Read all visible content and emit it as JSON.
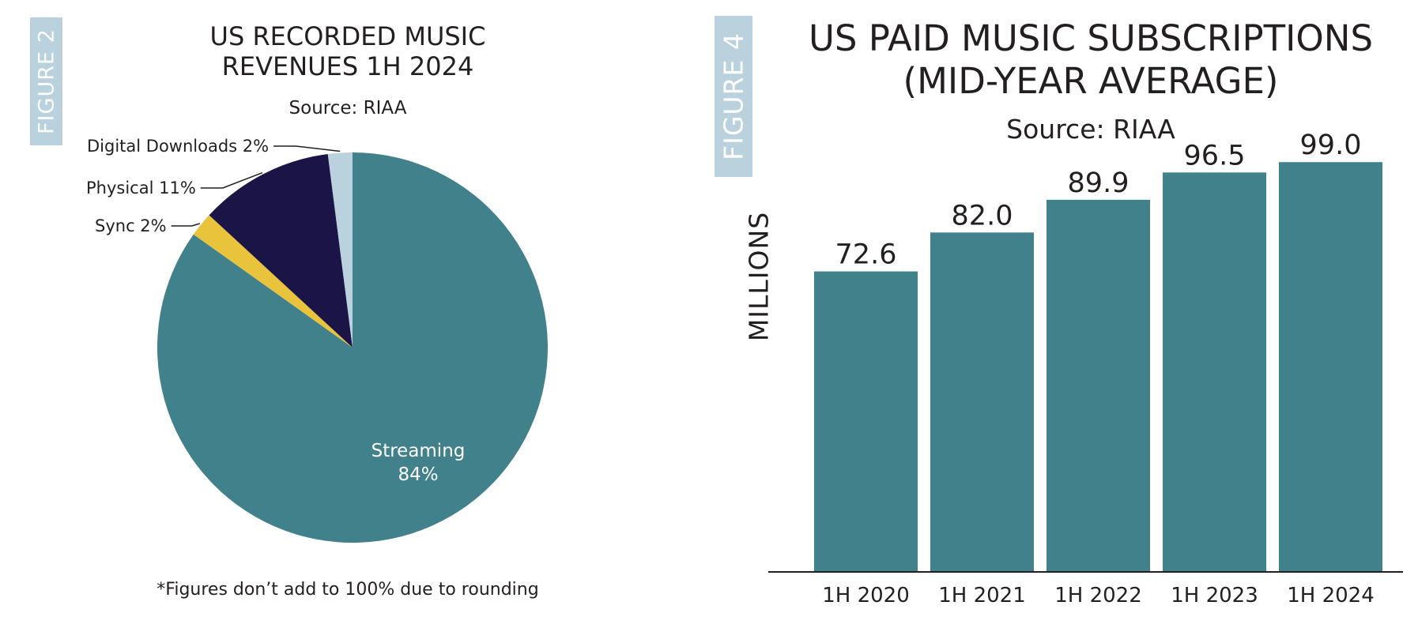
{
  "figures": {
    "left_tag": "FIGURE 2",
    "right_tag": "FIGURE 4"
  },
  "footnote": "*Figures don’t add to 100% due to rounding",
  "colors": {
    "streaming": "#40818b",
    "physical": "#1b1447",
    "sync": "#e8c33b",
    "digital_downloads": "#b9d2de",
    "bar": "#40818b",
    "tag": "#b9d2de"
  },
  "chart_data": [
    {
      "type": "pie",
      "title": "US RECORDED MUSIC REVENUES 1H 2024",
      "subtitle": "Source: RIAA",
      "slices": [
        {
          "name": "Streaming",
          "value": 84,
          "label": "84%"
        },
        {
          "name": "Sync",
          "value": 2,
          "label": "Sync 2%"
        },
        {
          "name": "Physical",
          "value": 11,
          "label": "Physical 11%"
        },
        {
          "name": "Digital Downloads",
          "value": 2,
          "label": "Digital Downloads 2%"
        }
      ]
    },
    {
      "type": "bar",
      "title": "US PAID MUSIC SUBSCRIPTIONS (MID-YEAR AVERAGE)",
      "subtitle": "Source: RIAA",
      "ylabel": "MILLIONS",
      "xlabel": "",
      "categories": [
        "1H 2020",
        "1H 2021",
        "1H 2022",
        "1H 2023",
        "1H 2024"
      ],
      "values": [
        72.6,
        82.0,
        89.9,
        96.5,
        99.0
      ],
      "value_labels": [
        "72.6",
        "82.0",
        "89.9",
        "96.5",
        "99.0"
      ],
      "ylim": [
        0,
        100
      ]
    }
  ]
}
